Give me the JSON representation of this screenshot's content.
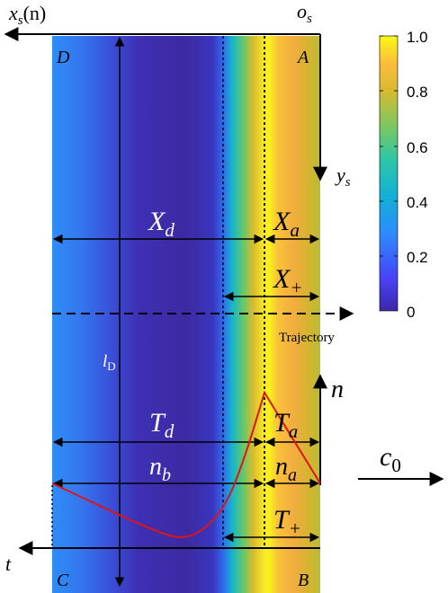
{
  "labels": {
    "xs": "x",
    "xs_sub": "s",
    "xs_arg": "(n)",
    "os": "o",
    "os_sub": "s",
    "ys": "y",
    "ys_sub": "s",
    "corner_a": "A",
    "corner_b": "B",
    "corner_c": "C",
    "corner_d": "D",
    "Xd": "X",
    "Xd_sub": "d",
    "Xa": "X",
    "Xa_sub": "a",
    "Xplus": "X",
    "Xplus_sub": "+",
    "trajectory": "Trajectory",
    "lD": "l",
    "lD_sub": "D",
    "n": "n",
    "Td": "T",
    "Td_sub": "d",
    "Ta": "T",
    "Ta_sub": "a",
    "nb": "n",
    "nb_sub": "b",
    "na": "n",
    "na_sub": "a",
    "c0": "c",
    "c0_sub": "0",
    "Tplus": "T",
    "Tplus_sub": "+",
    "t": "t"
  },
  "colorbar": {
    "ticks": [
      "1.0",
      "0.8",
      "0.6",
      "0.4",
      "0.2",
      "0"
    ],
    "colormap": [
      "#3e26a8",
      "#4743f8",
      "#2d8bfd",
      "#12b1d4",
      "#2dc6a8",
      "#7ac860",
      "#d6ba30",
      "#fdbd3c",
      "#f9f914"
    ]
  },
  "colors": {
    "curve": "#e01414",
    "axis": "#000000"
  }
}
